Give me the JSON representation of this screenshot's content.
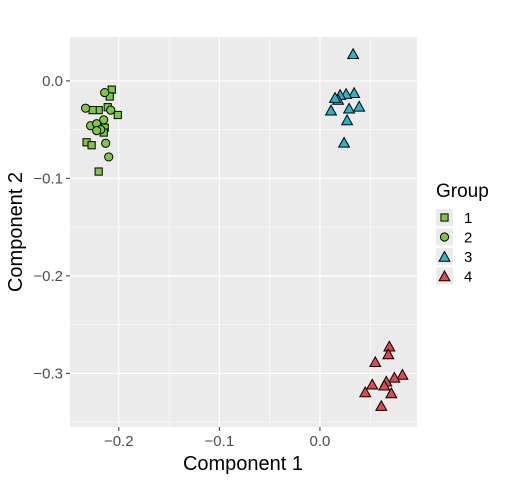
{
  "chart_data": {
    "type": "scatter",
    "xlabel": "Component 1",
    "ylabel": "Component 2",
    "xlim": [
      -0.2485,
      0.0965
    ],
    "ylim": [
      -0.355,
      0.045
    ],
    "x_ticks": [
      -0.2,
      -0.1,
      0.0
    ],
    "x_tick_labels": [
      "−0.2",
      "−0.1",
      "0.0"
    ],
    "y_ticks": [
      0.0,
      -0.1,
      -0.2,
      -0.3
    ],
    "y_tick_labels": [
      "0.0",
      "−0.1",
      "−0.2",
      "−0.3"
    ],
    "grid": true,
    "background": "#ebebeb",
    "legend": {
      "title": "Group",
      "position": "right"
    },
    "series": [
      {
        "name": "1",
        "shape": "square",
        "color": "#7ac943",
        "points": [
          [
            -0.207,
            -0.009
          ],
          [
            -0.209,
            -0.016
          ],
          [
            -0.211,
            -0.027
          ],
          [
            -0.201,
            -0.035
          ],
          [
            -0.22,
            -0.03
          ],
          [
            -0.226,
            -0.03
          ],
          [
            -0.214,
            -0.048
          ],
          [
            -0.215,
            -0.053
          ],
          [
            -0.232,
            -0.063
          ],
          [
            -0.227,
            -0.066
          ],
          [
            -0.22,
            -0.093
          ]
        ]
      },
      {
        "name": "2",
        "shape": "circle",
        "color": "#7ac943",
        "points": [
          [
            -0.214,
            -0.012
          ],
          [
            -0.208,
            -0.03
          ],
          [
            -0.233,
            -0.028
          ],
          [
            -0.215,
            -0.04
          ],
          [
            -0.228,
            -0.046
          ],
          [
            -0.222,
            -0.044
          ],
          [
            -0.218,
            -0.05
          ],
          [
            -0.222,
            -0.051
          ],
          [
            -0.213,
            -0.064
          ],
          [
            -0.21,
            -0.078
          ]
        ]
      },
      {
        "name": "3",
        "shape": "triangle",
        "color": "#29b5c9",
        "points": [
          [
            0.033,
            0.027
          ],
          [
            0.034,
            -0.013
          ],
          [
            0.026,
            -0.014
          ],
          [
            0.02,
            -0.015
          ],
          [
            0.018,
            -0.02
          ],
          [
            0.015,
            -0.018
          ],
          [
            0.039,
            -0.027
          ],
          [
            0.029,
            -0.029
          ],
          [
            0.011,
            -0.031
          ],
          [
            0.027,
            -0.041
          ],
          [
            0.024,
            -0.064
          ]
        ]
      },
      {
        "name": "4",
        "shape": "triangle",
        "color": "#e04a4a",
        "points": [
          [
            0.069,
            -0.273
          ],
          [
            0.068,
            -0.281
          ],
          [
            0.055,
            -0.289
          ],
          [
            0.082,
            -0.302
          ],
          [
            0.074,
            -0.305
          ],
          [
            0.066,
            -0.309
          ],
          [
            0.052,
            -0.312
          ],
          [
            0.064,
            -0.313
          ],
          [
            0.045,
            -0.32
          ],
          [
            0.071,
            -0.321
          ],
          [
            0.061,
            -0.334
          ]
        ]
      }
    ]
  }
}
